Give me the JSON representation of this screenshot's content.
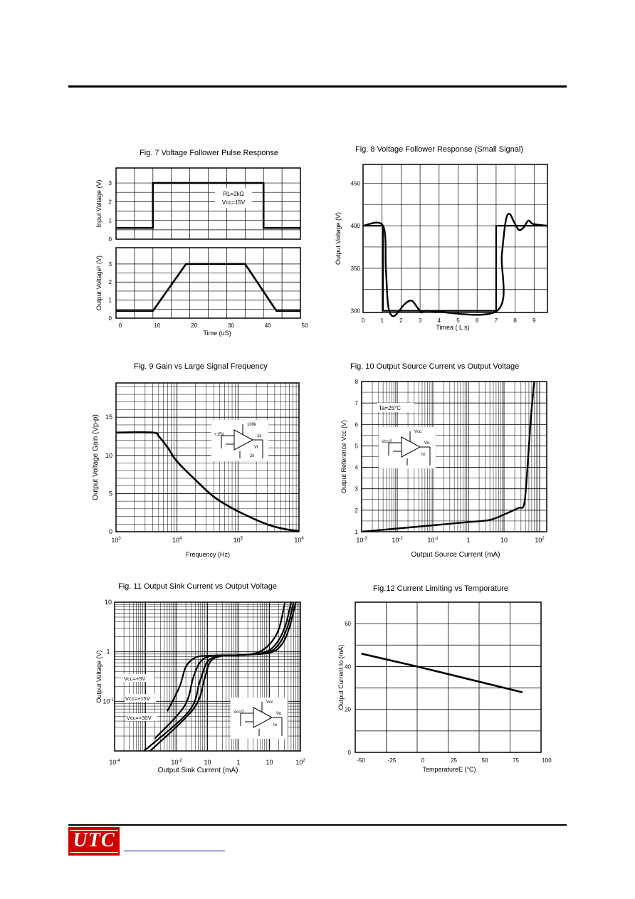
{
  "footer": {
    "logo_text": "UTC"
  },
  "fig7": {
    "title": "Fig. 7 Voltage Follower Pulse Response",
    "top": {
      "ylabel": "Input Voltage   (V)",
      "yticks": [
        "0",
        "1",
        "2",
        "3"
      ],
      "annotation": [
        "RL=2kΩ",
        "Vcc=15V"
      ],
      "points": [
        [
          0,
          0.6
        ],
        [
          10,
          0.6
        ],
        [
          10,
          3
        ],
        [
          40,
          3
        ],
        [
          40,
          0.6
        ],
        [
          50,
          0.6
        ]
      ],
      "ylim": [
        0,
        3.8
      ]
    },
    "bottom": {
      "ylabel": "Output Voltage¹   (V)",
      "yticks": [
        "0",
        "1",
        "2",
        "3"
      ],
      "points": [
        [
          0,
          0.4
        ],
        [
          10,
          0.4
        ],
        [
          19,
          3
        ],
        [
          35,
          3
        ],
        [
          43.5,
          0.4
        ],
        [
          50,
          0.4
        ]
      ],
      "ylim": [
        0,
        3.9
      ]
    },
    "xticks": [
      "0",
      "10",
      "20",
      "30",
      "40",
      "50"
    ],
    "xlabel": "Time (uS)",
    "xlim": [
      0,
      50
    ]
  },
  "fig8": {
    "title": "Fig. 8 Voltage Follower Response (Small Signal)",
    "ylabel": "Output Voltage   (V)",
    "yticks": [
      "300",
      "350",
      "400",
      "450"
    ],
    "xticks": [
      "0",
      "1",
      "2",
      "3",
      "4",
      "5",
      "6",
      "7",
      "8",
      "9"
    ],
    "xlabel": "Timea  ( L s)",
    "xlim": [
      0,
      9.7
    ],
    "ylim": [
      298,
      472
    ],
    "input_points": [
      [
        0,
        400
      ],
      [
        1.05,
        400
      ],
      [
        1.05,
        300
      ],
      [
        7,
        300
      ],
      [
        7,
        400
      ],
      [
        9.7,
        400
      ]
    ],
    "output_points": [
      [
        0,
        400
      ],
      [
        1.05,
        400
      ],
      [
        1.2,
        350
      ],
      [
        1.3,
        310
      ],
      [
        1.45,
        296
      ],
      [
        1.65,
        294
      ],
      [
        1.9,
        300
      ],
      [
        2.2,
        308
      ],
      [
        2.55,
        312
      ],
      [
        2.85,
        304
      ],
      [
        3.1,
        298
      ],
      [
        3.35,
        300
      ],
      [
        7.05,
        300
      ],
      [
        7.3,
        365
      ],
      [
        7.5,
        405
      ],
      [
        7.7,
        414
      ],
      [
        7.95,
        404
      ],
      [
        8.2,
        395
      ],
      [
        8.45,
        398
      ],
      [
        8.7,
        406
      ],
      [
        8.95,
        402
      ],
      [
        9.7,
        400
      ]
    ]
  },
  "fig9": {
    "title": "Fig. 9 Gain vs Large Signal Frequency",
    "ylabel": "Output Voltage Gain (Vp-p)",
    "yticks": [
      "0",
      "5",
      "10",
      "15"
    ],
    "xticks": [
      "10",
      "10",
      "10",
      "10"
    ],
    "xtick_exp": [
      "3",
      "4",
      "5",
      "6"
    ],
    "xlabel": "Frequency (Hz)",
    "xlim": [
      3,
      6
    ],
    "ylim": [
      0,
      19.5
    ],
    "circuit_labels": [
      "100k",
      "+15V",
      "1k",
      "Vi",
      "2k"
    ],
    "points": [
      [
        3,
        13
      ],
      [
        3.6,
        13
      ],
      [
        3.7,
        12.5
      ],
      [
        3.85,
        11
      ],
      [
        4,
        9.2
      ],
      [
        4.3,
        6.8
      ],
      [
        4.6,
        4.6
      ],
      [
        4.9,
        3.1
      ],
      [
        5.2,
        1.9
      ],
      [
        5.5,
        0.9
      ],
      [
        5.8,
        0.3
      ],
      [
        6,
        0.1
      ]
    ]
  },
  "fig10": {
    "title": "Fig. 10 Output Source Current vs Output Voltage",
    "ylabel": "Output Reference Vcc   (V)",
    "yticks": [
      "1",
      "2",
      "3",
      "4",
      "5",
      "6",
      "7",
      "8"
    ],
    "xticks": [
      "10",
      "10",
      "10",
      "1",
      "10",
      "10"
    ],
    "xtick_exp": [
      "-3",
      "-2",
      "-1",
      "",
      "",
      "2"
    ],
    "xlabel": "Output Source Current (mA)",
    "xlim": [
      -3,
      2.2
    ],
    "ylim": [
      1,
      8
    ],
    "annotation": "Ta=25°C",
    "circuit_labels": [
      "Vcc",
      "Vcc/2",
      "Vo",
      "Io"
    ],
    "points": [
      [
        -3,
        1
      ],
      [
        -2,
        1.15
      ],
      [
        -1,
        1.3
      ],
      [
        0,
        1.45
      ],
      [
        0.6,
        1.55
      ],
      [
        1,
        1.8
      ],
      [
        1.4,
        2.1
      ],
      [
        1.55,
        2.2
      ],
      [
        1.62,
        3.1
      ],
      [
        1.75,
        6.2
      ],
      [
        1.85,
        8
      ]
    ]
  },
  "fig11": {
    "title": "Fig. 11 Output Sink Current vs Output Voltage",
    "ylabel": "Output Voltage   (V)",
    "yticks": [
      "10",
      "1",
      "10"
    ],
    "ytick_exp": [
      "",
      "",
      "-1"
    ],
    "xticks": [
      "10",
      "10",
      "10",
      "1",
      "10",
      "10"
    ],
    "xtick_exp": [
      "-4",
      "-2",
      "",
      "",
      "",
      "2"
    ],
    "xlabel": "Output Sink Current (mA)",
    "xlim": [
      -4,
      2
    ],
    "ylim": [
      -2,
      1
    ],
    "circuit_labels": [
      "Vcc",
      "Vcc/2",
      "Vo",
      "Io"
    ],
    "series": [
      {
        "name": "Vcc=+5V",
        "points": [
          [
            -2.3,
            -1.2
          ],
          [
            -1.9,
            -0.7
          ],
          [
            -1.7,
            -0.3
          ],
          [
            -1.4,
            -0.12
          ],
          [
            -1,
            -0.08
          ],
          [
            0,
            -0.07
          ],
          [
            0.6,
            -0.02
          ],
          [
            1,
            0.15
          ],
          [
            1.3,
            0.45
          ],
          [
            1.5,
            1
          ]
        ]
      },
      {
        "name": "Vcc=+15V",
        "points": [
          [
            -2.7,
            -1.75
          ],
          [
            -1.75,
            -1.1
          ],
          [
            -1.45,
            -0.5
          ],
          [
            -1.2,
            -0.18
          ],
          [
            -0.8,
            -0.08
          ],
          [
            0,
            -0.07
          ],
          [
            0.8,
            -0.02
          ],
          [
            1.2,
            0.15
          ],
          [
            1.5,
            0.5
          ],
          [
            1.7,
            1
          ]
        ]
      },
      {
        "name": "Vcc=+30V",
        "points": [
          [
            -3.05,
            -2
          ],
          [
            -1.6,
            -1.2
          ],
          [
            -1.25,
            -0.6
          ],
          [
            -1,
            -0.2
          ],
          [
            -0.6,
            -0.08
          ],
          [
            0,
            -0.07
          ],
          [
            1,
            -0.02
          ],
          [
            1.4,
            0.15
          ],
          [
            1.65,
            0.5
          ],
          [
            1.85,
            1
          ]
        ]
      },
      {
        "name": "",
        "points": [
          [
            -2.85,
            -2
          ],
          [
            -1.45,
            -1.15
          ],
          [
            -1.1,
            -0.55
          ],
          [
            -0.9,
            -0.19
          ],
          [
            -0.5,
            -0.08
          ],
          [
            0,
            -0.07
          ],
          [
            0.9,
            -0.02
          ],
          [
            1.3,
            0.15
          ],
          [
            1.58,
            0.5
          ],
          [
            1.78,
            1
          ]
        ]
      }
    ]
  },
  "fig12": {
    "title": "Fig.12 Current Limiting vs Temporature",
    "ylabel": "Output Current Io (mA)",
    "yticks": [
      "0",
      "20",
      "40",
      "60"
    ],
    "xticks": [
      "-50",
      "-25",
      "0",
      "25",
      "50",
      "75",
      "100"
    ],
    "xlabel": "TemperatureE   (°C)",
    "xlim": [
      -50,
      100
    ],
    "ylim": [
      0,
      70
    ],
    "points": [
      [
        -45,
        46
      ],
      [
        0,
        40
      ],
      [
        85,
        28
      ]
    ]
  }
}
